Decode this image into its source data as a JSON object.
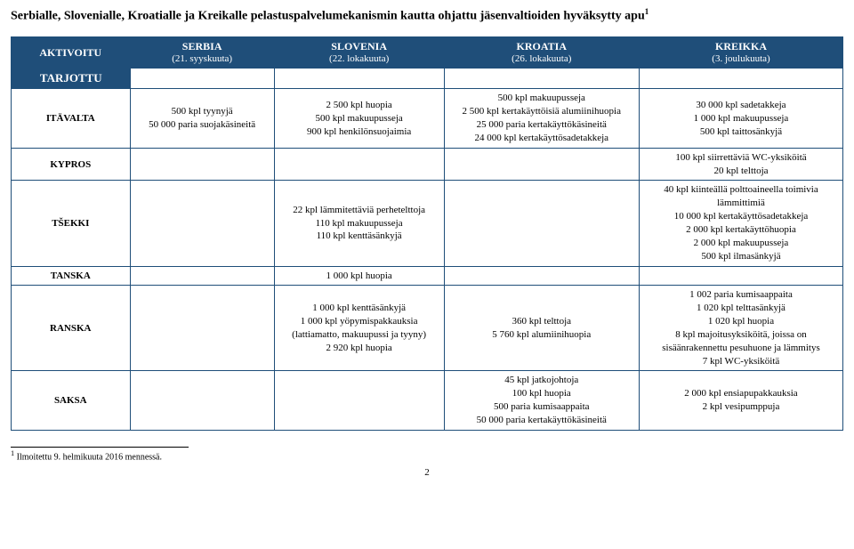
{
  "title_main": "Serbialle, Slovenialle, Kroatialle ja Kreikalle pelastuspalvelumekanismin kautta ohjattu jäsenvaltioiden hyväksytty apu",
  "title_sup": "1",
  "header": {
    "aktivoitu": "AKTIVOITU",
    "serbia_name": "SERBIA",
    "serbia_date": "(21. syyskuuta)",
    "slovenia_name": "SLOVENIA",
    "slovenia_date": "(22. lokakuuta)",
    "kroatia_name": "KROATIA",
    "kroatia_date": "(26. lokakuuta)",
    "kreikka_name": "KREIKKA",
    "kreikka_date": "(3. joulukuuta)"
  },
  "tarjottu": "TARJOTTU",
  "rows": {
    "itavalta": {
      "label": "ITÄVALTA",
      "serbia": "500 kpl tyynyjä\n50 000 paria suojakäsineitä",
      "slovenia": "2 500 kpl huopia\n500 kpl makuupusseja\n900 kpl henkilönsuojaimia",
      "kroatia": "500 kpl makuupusseja\n2 500 kpl kertakäyttöisiä alumiinihuopia\n25 000 paria kertakäyttökäsineitä\n24 000 kpl kertakäyttösadetakkeja",
      "kreikka": "30 000 kpl sadetakkeja\n1 000 kpl makuupusseja\n500 kpl taittosänkyjä"
    },
    "kypros": {
      "label": "KYPROS",
      "kreikka": "100 kpl siirrettäviä WC-yksiköitä\n20 kpl telttoja"
    },
    "tsekki": {
      "label": "TŠEKKI",
      "slovenia": "22 kpl lämmitettäviä perhetelttoja\n110 kpl makuupusseja\n110 kpl kenttäsänkyjä",
      "kreikka": "40 kpl kiinteällä polttoaineella toimivia lämmittimiä\n10 000 kpl kertakäyttösadetakkeja\n2 000 kpl kertakäyttöhuopia\n2 000 kpl makuupusseja\n500 kpl ilmasänkyjä"
    },
    "tanska": {
      "label": "TANSKA",
      "slovenia": "1 000 kpl huopia"
    },
    "ranska": {
      "label": "RANSKA",
      "slovenia": "1 000 kpl kenttäsänkyjä\n1 000 kpl yöpymispakkauksia (lattiamatto, makuupussi ja tyyny)\n2 920 kpl huopia",
      "kroatia": "360 kpl telttoja\n5 760 kpl alumiinihuopia",
      "kreikka": "1 002 paria kumisaappaita\n1 020 kpl telttasänkyjä\n1 020 kpl huopia\n8 kpl majoitusyksiköitä, joissa on sisäänrakennettu pesuhuone ja lämmitys\n7 kpl WC-yksiköitä"
    },
    "saksa": {
      "label": "SAKSA",
      "kroatia": "45 kpl jatkojohtoja\n100 kpl huopia\n500 paria kumisaappaita\n50 000 paria kertakäyttökäsineitä",
      "kreikka": "2 000 kpl ensiapupakkauksia\n2 kpl vesipumppuja"
    }
  },
  "footnote_marker": "1",
  "footnote_text": " Ilmoitettu 9. helmikuuta 2016 mennessä.",
  "page_number": "2"
}
